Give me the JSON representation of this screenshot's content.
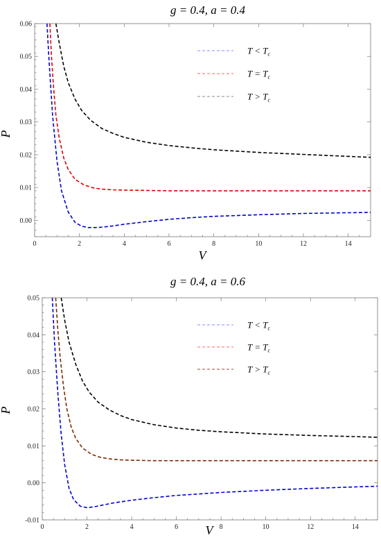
{
  "chart_data": [
    {
      "type": "line",
      "title": "g = 0.4, a = 0.4",
      "xlabel": "V",
      "ylabel": "P",
      "xlim": [
        0,
        15
      ],
      "ylim": [
        -0.005,
        0.06
      ],
      "xticks": [
        0,
        2,
        4,
        6,
        8,
        10,
        12,
        14
      ],
      "xtick_labels": [
        "0",
        "2",
        "4",
        "6",
        "8",
        "10",
        "12",
        "14"
      ],
      "yticks": [
        0.0,
        0.01,
        0.02,
        0.03,
        0.04,
        0.05,
        0.06
      ],
      "ytick_labels": [
        "0.00",
        "0.01",
        "0.02",
        "0.03",
        "0.04",
        "0.05",
        "0.06"
      ],
      "legend_position": "top-right",
      "legend": [
        {
          "label": "T < T",
          "sub": "c",
          "color": "#8888ff"
        },
        {
          "label": "T = T",
          "sub": "c",
          "color": "#ff6666"
        },
        {
          "label": "T > T",
          "sub": "c",
          "color": "#888888"
        }
      ],
      "series": [
        {
          "color": "#000000",
          "x": [
            0.95,
            1.1,
            1.3,
            1.5,
            1.8,
            2.1,
            2.5,
            3.0,
            3.5,
            4.0,
            5.0,
            6.0,
            7.0,
            8.0,
            10.0,
            12.0,
            14.0,
            15.0
          ],
          "y": [
            0.06,
            0.054,
            0.047,
            0.042,
            0.037,
            0.0335,
            0.0305,
            0.028,
            0.0265,
            0.0253,
            0.0238,
            0.0228,
            0.0221,
            0.0215,
            0.0207,
            0.0201,
            0.0195,
            0.0192
          ]
        },
        {
          "color": "#dd0000",
          "x": [
            0.68,
            0.75,
            0.85,
            0.95,
            1.1,
            1.3,
            1.5,
            1.8,
            2.2,
            2.6,
            3.0,
            3.5,
            4.0,
            5.0,
            6.0,
            8.0,
            10.0,
            12.0,
            15.0
          ],
          "y": [
            0.06,
            0.05,
            0.04,
            0.032,
            0.025,
            0.019,
            0.0155,
            0.0125,
            0.0108,
            0.0099,
            0.0095,
            0.0093,
            0.0092,
            0.0091,
            0.009,
            0.009,
            0.009,
            0.009,
            0.009
          ]
        },
        {
          "color": "#0000cc",
          "x": [
            0.55,
            0.65,
            0.8,
            1.0,
            1.2,
            1.5,
            1.8,
            2.1,
            2.4,
            2.7,
            3.0,
            3.5,
            4.0,
            5.0,
            6.0,
            7.0,
            8.0,
            10.0,
            12.0,
            14.0,
            15.0
          ],
          "y": [
            0.06,
            0.048,
            0.032,
            0.018,
            0.009,
            0.0025,
            -0.0006,
            -0.0018,
            -0.0022,
            -0.0022,
            -0.0021,
            -0.0017,
            -0.0012,
            -0.0004,
            0.0003,
            0.0008,
            0.0012,
            0.0017,
            0.0021,
            0.0023,
            0.0024
          ]
        }
      ]
    },
    {
      "type": "line",
      "title": "g = 0.4, a = 0.6",
      "xlabel": "V",
      "ylabel": "P",
      "xlim": [
        0,
        15
      ],
      "ylim": [
        -0.01,
        0.05
      ],
      "xticks": [
        0,
        2,
        4,
        6,
        8,
        10,
        12,
        14
      ],
      "xtick_labels": [
        "0",
        "2",
        "4",
        "6",
        "8",
        "10",
        "12",
        "14"
      ],
      "yticks": [
        -0.01,
        0.0,
        0.01,
        0.02,
        0.03,
        0.04,
        0.05
      ],
      "ytick_labels": [
        "-0.01",
        "0.00",
        "0.01",
        "0.02",
        "0.03",
        "0.04",
        "0.05"
      ],
      "legend_position": "top-right",
      "legend": [
        {
          "label": "T < T",
          "sub": "c",
          "color": "#8888ff"
        },
        {
          "label": "T = T",
          "sub": "c",
          "color": "#ff6666"
        },
        {
          "label": "T > T",
          "sub": "c",
          "color": "#994444"
        }
      ],
      "series": [
        {
          "color": "#000000",
          "x": [
            0.85,
            1.0,
            1.2,
            1.5,
            1.8,
            2.1,
            2.5,
            3.0,
            3.5,
            4.0,
            5.0,
            6.0,
            7.0,
            8.0,
            10.0,
            12.0,
            14.0,
            15.0
          ],
          "y": [
            0.05,
            0.044,
            0.038,
            0.032,
            0.0275,
            0.0245,
            0.0218,
            0.0197,
            0.0182,
            0.0171,
            0.0157,
            0.0148,
            0.0142,
            0.0138,
            0.0132,
            0.0128,
            0.0125,
            0.0123
          ]
        },
        {
          "color": "#7a2a00",
          "x": [
            0.6,
            0.7,
            0.8,
            0.95,
            1.1,
            1.3,
            1.5,
            1.8,
            2.2,
            2.6,
            3.0,
            3.5,
            4.0,
            5.0,
            6.0,
            8.0,
            10.0,
            12.0,
            15.0
          ],
          "y": [
            0.05,
            0.041,
            0.034,
            0.026,
            0.02,
            0.015,
            0.012,
            0.0094,
            0.0077,
            0.0069,
            0.0065,
            0.0062,
            0.0061,
            0.006,
            0.006,
            0.006,
            0.006,
            0.006,
            0.006
          ]
        },
        {
          "color": "#0000cc",
          "x": [
            0.45,
            0.55,
            0.7,
            0.85,
            1.0,
            1.2,
            1.4,
            1.7,
            2.0,
            2.3,
            2.7,
            3.2,
            4.0,
            5.0,
            6.0,
            7.0,
            8.0,
            10.0,
            12.0,
            14.0,
            15.0
          ],
          "y": [
            0.05,
            0.038,
            0.024,
            0.013,
            0.005,
            -0.0015,
            -0.0045,
            -0.0063,
            -0.0067,
            -0.0065,
            -0.006,
            -0.0054,
            -0.0047,
            -0.004,
            -0.0034,
            -0.003,
            -0.0026,
            -0.002,
            -0.0015,
            -0.0011,
            -0.0009
          ]
        }
      ]
    }
  ]
}
